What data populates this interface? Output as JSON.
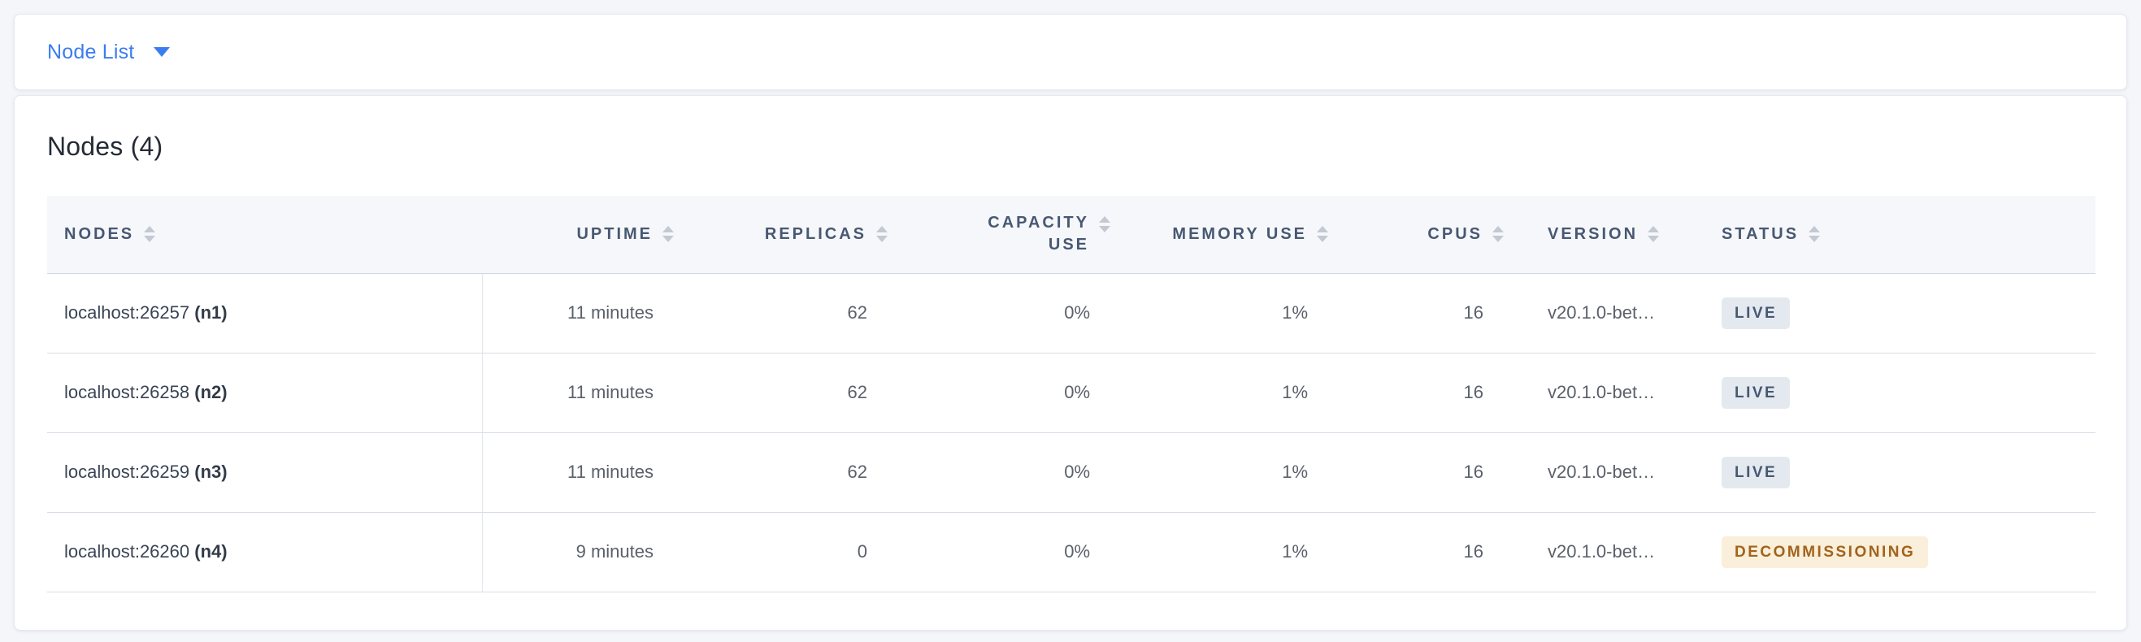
{
  "toolbar": {
    "view_selector_label": "Node List"
  },
  "main": {
    "title": "Nodes (4)"
  },
  "table": {
    "columns": [
      {
        "key": "nodes",
        "label": "NODES",
        "align": "left"
      },
      {
        "key": "uptime",
        "label": "UPTIME",
        "align": "right"
      },
      {
        "key": "replicas",
        "label": "REPLICAS",
        "align": "right"
      },
      {
        "key": "capacity_use",
        "label": "CAPACITY USE",
        "align": "right"
      },
      {
        "key": "memory_use",
        "label": "MEMORY USE",
        "align": "right"
      },
      {
        "key": "cpus",
        "label": "CPUS",
        "align": "right"
      },
      {
        "key": "version",
        "label": "VERSION",
        "align": "left"
      },
      {
        "key": "status",
        "label": "STATUS",
        "align": "left"
      }
    ],
    "rows": [
      {
        "address": "localhost:26257",
        "node_id": "(n1)",
        "uptime": "11 minutes",
        "replicas": "62",
        "capacity_use": "0%",
        "memory_use": "1%",
        "cpus": "16",
        "version": "v20.1.0-bet…",
        "status": "LIVE"
      },
      {
        "address": "localhost:26258",
        "node_id": "(n2)",
        "uptime": "11 minutes",
        "replicas": "62",
        "capacity_use": "0%",
        "memory_use": "1%",
        "cpus": "16",
        "version": "v20.1.0-bet…",
        "status": "LIVE"
      },
      {
        "address": "localhost:26259",
        "node_id": "(n3)",
        "uptime": "11 minutes",
        "replicas": "62",
        "capacity_use": "0%",
        "memory_use": "1%",
        "cpus": "16",
        "version": "v20.1.0-bet…",
        "status": "LIVE"
      },
      {
        "address": "localhost:26260",
        "node_id": "(n4)",
        "uptime": "9 minutes",
        "replicas": "0",
        "capacity_use": "0%",
        "memory_use": "1%",
        "cpus": "16",
        "version": "v20.1.0-bet…",
        "status": "DECOMMISSIONING"
      }
    ]
  },
  "icons": {
    "caret_down": "caret-down-icon",
    "sort": "sort-icon"
  },
  "colors": {
    "accent_blue": "#3b7cf1",
    "page_background": "#f4f6fa",
    "card_background": "#ffffff",
    "header_text": "#475872",
    "badge_live_bg": "#e4e9f0",
    "badge_live_text": "#475872",
    "badge_decommissioning_bg": "#f9efda",
    "badge_decommissioning_text": "#a2631c"
  }
}
